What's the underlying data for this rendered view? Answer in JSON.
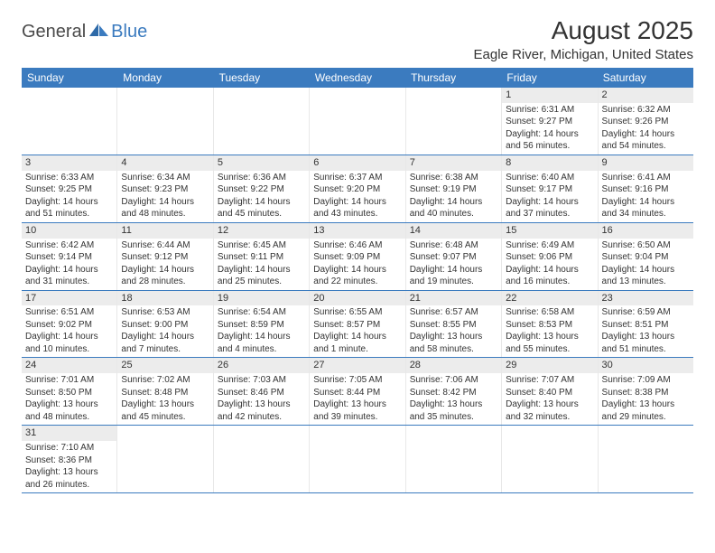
{
  "logo": {
    "general": "General",
    "blue": "Blue"
  },
  "title": "August 2025",
  "location": "Eagle River, Michigan, United States",
  "colors": {
    "header_bg": "#3b7bbf",
    "header_text": "#ffffff",
    "daynum_bg": "#ececec",
    "border": "#3b7bbf",
    "cell_border": "#e8e8e8",
    "text": "#333333"
  },
  "daysOfWeek": [
    "Sunday",
    "Monday",
    "Tuesday",
    "Wednesday",
    "Thursday",
    "Friday",
    "Saturday"
  ],
  "weeks": [
    [
      null,
      null,
      null,
      null,
      null,
      {
        "n": "1",
        "sunrise": "6:31 AM",
        "sunset": "9:27 PM",
        "daylight": "14 hours and 56 minutes."
      },
      {
        "n": "2",
        "sunrise": "6:32 AM",
        "sunset": "9:26 PM",
        "daylight": "14 hours and 54 minutes."
      }
    ],
    [
      {
        "n": "3",
        "sunrise": "6:33 AM",
        "sunset": "9:25 PM",
        "daylight": "14 hours and 51 minutes."
      },
      {
        "n": "4",
        "sunrise": "6:34 AM",
        "sunset": "9:23 PM",
        "daylight": "14 hours and 48 minutes."
      },
      {
        "n": "5",
        "sunrise": "6:36 AM",
        "sunset": "9:22 PM",
        "daylight": "14 hours and 45 minutes."
      },
      {
        "n": "6",
        "sunrise": "6:37 AM",
        "sunset": "9:20 PM",
        "daylight": "14 hours and 43 minutes."
      },
      {
        "n": "7",
        "sunrise": "6:38 AM",
        "sunset": "9:19 PM",
        "daylight": "14 hours and 40 minutes."
      },
      {
        "n": "8",
        "sunrise": "6:40 AM",
        "sunset": "9:17 PM",
        "daylight": "14 hours and 37 minutes."
      },
      {
        "n": "9",
        "sunrise": "6:41 AM",
        "sunset": "9:16 PM",
        "daylight": "14 hours and 34 minutes."
      }
    ],
    [
      {
        "n": "10",
        "sunrise": "6:42 AM",
        "sunset": "9:14 PM",
        "daylight": "14 hours and 31 minutes."
      },
      {
        "n": "11",
        "sunrise": "6:44 AM",
        "sunset": "9:12 PM",
        "daylight": "14 hours and 28 minutes."
      },
      {
        "n": "12",
        "sunrise": "6:45 AM",
        "sunset": "9:11 PM",
        "daylight": "14 hours and 25 minutes."
      },
      {
        "n": "13",
        "sunrise": "6:46 AM",
        "sunset": "9:09 PM",
        "daylight": "14 hours and 22 minutes."
      },
      {
        "n": "14",
        "sunrise": "6:48 AM",
        "sunset": "9:07 PM",
        "daylight": "14 hours and 19 minutes."
      },
      {
        "n": "15",
        "sunrise": "6:49 AM",
        "sunset": "9:06 PM",
        "daylight": "14 hours and 16 minutes."
      },
      {
        "n": "16",
        "sunrise": "6:50 AM",
        "sunset": "9:04 PM",
        "daylight": "14 hours and 13 minutes."
      }
    ],
    [
      {
        "n": "17",
        "sunrise": "6:51 AM",
        "sunset": "9:02 PM",
        "daylight": "14 hours and 10 minutes."
      },
      {
        "n": "18",
        "sunrise": "6:53 AM",
        "sunset": "9:00 PM",
        "daylight": "14 hours and 7 minutes."
      },
      {
        "n": "19",
        "sunrise": "6:54 AM",
        "sunset": "8:59 PM",
        "daylight": "14 hours and 4 minutes."
      },
      {
        "n": "20",
        "sunrise": "6:55 AM",
        "sunset": "8:57 PM",
        "daylight": "14 hours and 1 minute."
      },
      {
        "n": "21",
        "sunrise": "6:57 AM",
        "sunset": "8:55 PM",
        "daylight": "13 hours and 58 minutes."
      },
      {
        "n": "22",
        "sunrise": "6:58 AM",
        "sunset": "8:53 PM",
        "daylight": "13 hours and 55 minutes."
      },
      {
        "n": "23",
        "sunrise": "6:59 AM",
        "sunset": "8:51 PM",
        "daylight": "13 hours and 51 minutes."
      }
    ],
    [
      {
        "n": "24",
        "sunrise": "7:01 AM",
        "sunset": "8:50 PM",
        "daylight": "13 hours and 48 minutes."
      },
      {
        "n": "25",
        "sunrise": "7:02 AM",
        "sunset": "8:48 PM",
        "daylight": "13 hours and 45 minutes."
      },
      {
        "n": "26",
        "sunrise": "7:03 AM",
        "sunset": "8:46 PM",
        "daylight": "13 hours and 42 minutes."
      },
      {
        "n": "27",
        "sunrise": "7:05 AM",
        "sunset": "8:44 PM",
        "daylight": "13 hours and 39 minutes."
      },
      {
        "n": "28",
        "sunrise": "7:06 AM",
        "sunset": "8:42 PM",
        "daylight": "13 hours and 35 minutes."
      },
      {
        "n": "29",
        "sunrise": "7:07 AM",
        "sunset": "8:40 PM",
        "daylight": "13 hours and 32 minutes."
      },
      {
        "n": "30",
        "sunrise": "7:09 AM",
        "sunset": "8:38 PM",
        "daylight": "13 hours and 29 minutes."
      }
    ],
    [
      {
        "n": "31",
        "sunrise": "7:10 AM",
        "sunset": "8:36 PM",
        "daylight": "13 hours and 26 minutes."
      },
      null,
      null,
      null,
      null,
      null,
      null
    ]
  ]
}
